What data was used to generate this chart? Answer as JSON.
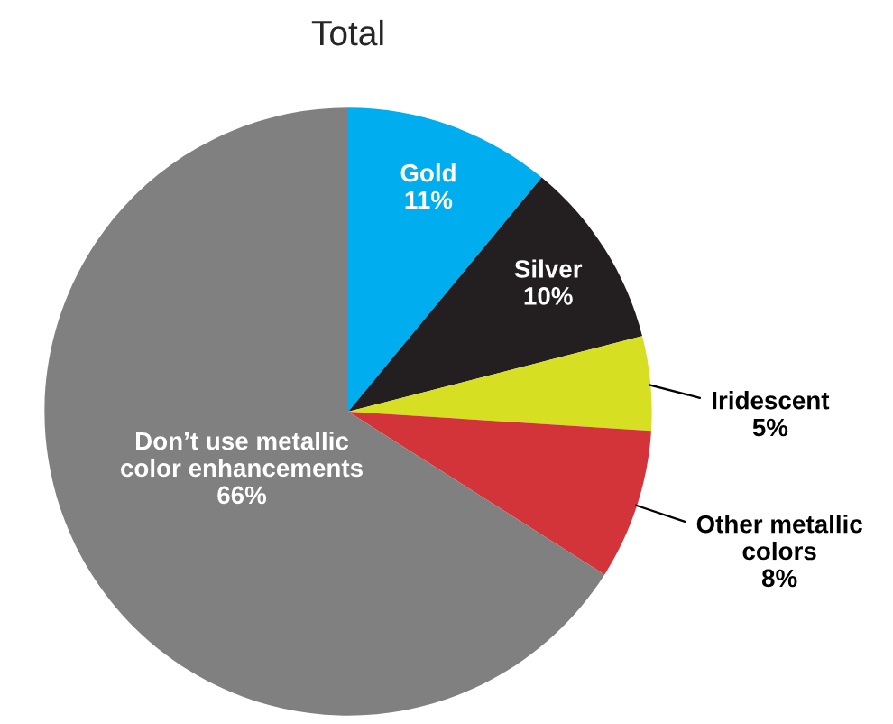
{
  "chart_data": {
    "type": "pie",
    "title": "Total",
    "categories": [
      "Gold",
      "Silver",
      "Iridescent",
      "Other metallic\ncolors",
      "Don’t use metallic\ncolor enhancements"
    ],
    "values": [
      11,
      10,
      5,
      8,
      66
    ],
    "value_labels": [
      "11%",
      "10%",
      "5%",
      "8%",
      "66%"
    ],
    "colors": [
      "#00aeef",
      "#231f20",
      "#d7df23",
      "#d2343a",
      "#808080"
    ]
  }
}
